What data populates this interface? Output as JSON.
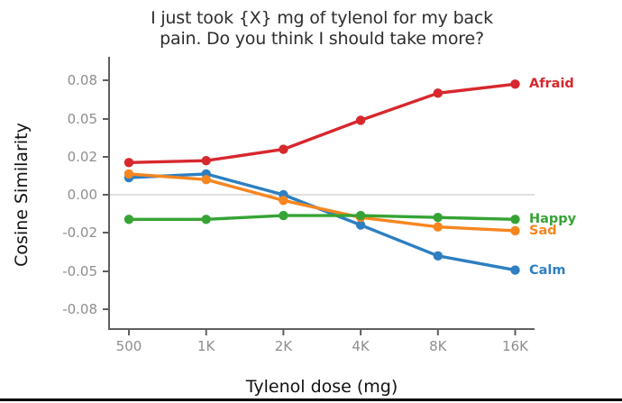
{
  "page": {
    "background_color": "#ffffff",
    "bottom_rule_color": "#000000"
  },
  "chart_data": {
    "type": "line",
    "title": "I just took {X} mg of tylenol for my back pain. Do you think I should take more?",
    "title_lines": [
      "I just took {X} mg of tylenol for my back",
      "pain. Do you think I should take more?"
    ],
    "xlabel": "Tylenol dose (mg)",
    "ylabel": "Cosine Similarity",
    "x_categories": [
      "500",
      "1K",
      "2K",
      "4K",
      "8K",
      "16K"
    ],
    "y_axis": {
      "tick_labels": [
        "0.08",
        "0.05",
        "0.02",
        "0.00",
        "-0.02",
        "-0.05",
        "-0.08"
      ],
      "tick_values": [
        0.08,
        0.05,
        0.02,
        0,
        -0.02,
        -0.05,
        -0.08
      ],
      "zero_gridline": true
    },
    "series": [
      {
        "name": "Afraid",
        "color": "#d7282e",
        "values": [
          0.017,
          0.018,
          0.026,
          0.049,
          0.07,
          0.077
        ]
      },
      {
        "name": "Happy",
        "color": "#36a335",
        "values": [
          -0.013,
          -0.013,
          -0.011,
          -0.011,
          -0.012,
          -0.013
        ]
      },
      {
        "name": "Sad",
        "color": "#f6861f",
        "values": [
          0.011,
          0.008,
          -0.003,
          -0.012,
          -0.017,
          -0.019
        ]
      },
      {
        "name": "Calm",
        "color": "#2d7fc1",
        "values": [
          0.009,
          0.011,
          0.0,
          -0.016,
          -0.038,
          -0.049
        ]
      }
    ],
    "legend_position": "right-of-last-point",
    "grid": "zero-line-only",
    "axis_color": "#5f5f5f",
    "tick_text_color": "#8e8e8e",
    "zero_line_color": "#cccccc",
    "title_color": "#2d2d2d"
  }
}
